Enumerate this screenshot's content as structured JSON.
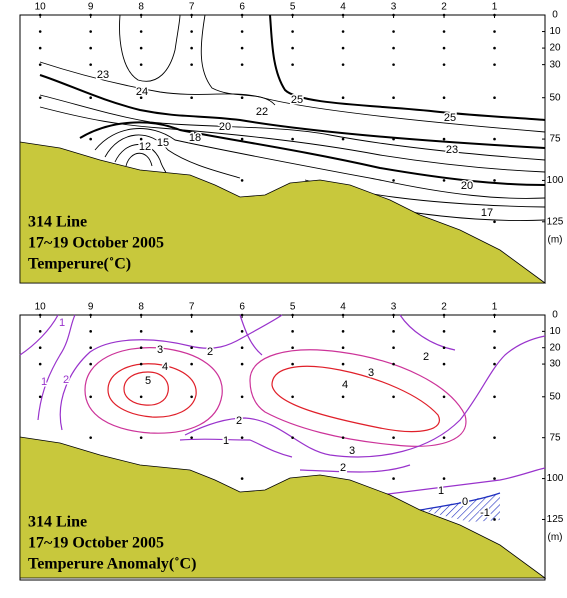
{
  "chart_data": [
    {
      "type": "contour",
      "title": "314 Line",
      "subtitle": "17~19 October 2005",
      "variable": "Temperure(˚C)",
      "xticks": [
        10,
        9,
        8,
        7,
        6,
        5,
        4,
        3,
        2,
        1
      ],
      "xlim": [
        10.4,
        0
      ],
      "yticks": [
        0,
        10,
        20,
        30,
        50,
        75,
        100,
        125
      ],
      "ylim": [
        0,
        162
      ],
      "ylabel": "(m)",
      "contour_labels": [
        23,
        24,
        25,
        22,
        20,
        18,
        15,
        12,
        25,
        23,
        20,
        17
      ]
    },
    {
      "type": "contour",
      "title": "314 Line",
      "subtitle": "17~19 October 2005",
      "variable": "Temperure Anomaly(˚C)",
      "xticks": [
        10,
        9,
        8,
        7,
        6,
        5,
        4,
        3,
        2,
        1
      ],
      "xlim": [
        10.4,
        0
      ],
      "yticks": [
        0,
        10,
        20,
        30,
        50,
        75,
        100,
        125
      ],
      "ylim": [
        0,
        162
      ],
      "ylabel": "(m)",
      "contour_labels": [
        1,
        1,
        2,
        3,
        2,
        4,
        5,
        3,
        4,
        2,
        2,
        1,
        3,
        2,
        1,
        0,
        -1
      ]
    }
  ]
}
